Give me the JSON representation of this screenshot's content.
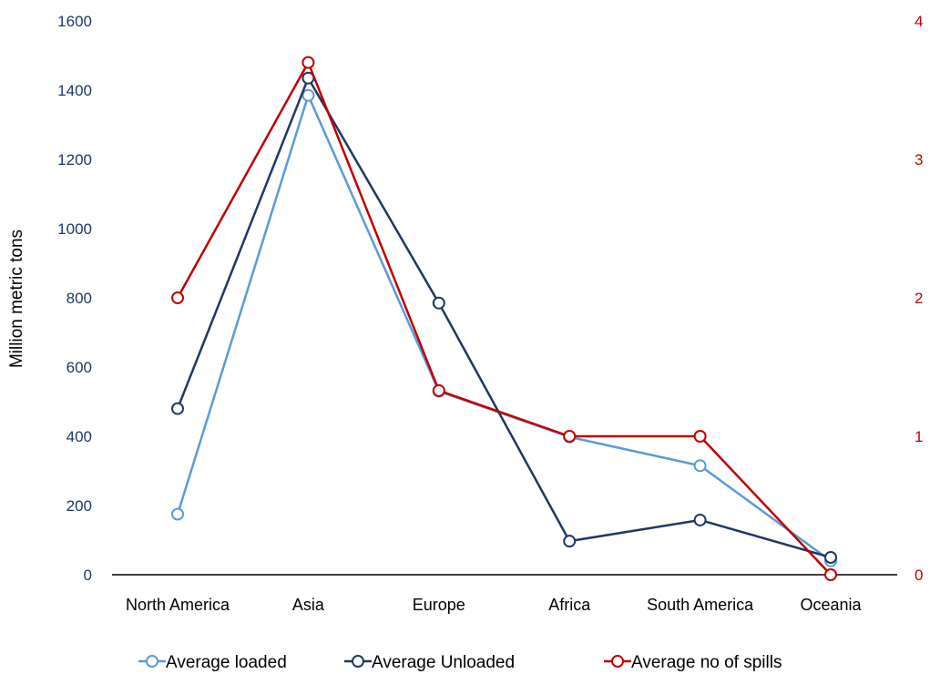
{
  "chart_data": {
    "type": "line",
    "title": "",
    "ylabel": "Million metric tons",
    "y2label": "",
    "categories": [
      "North America",
      "Asia",
      "Europe",
      "Africa",
      "South America",
      "Oceania"
    ],
    "ylim": [
      0,
      1600
    ],
    "yticks": [
      0,
      200,
      400,
      600,
      800,
      1000,
      1200,
      1400,
      1600
    ],
    "y2lim": [
      0,
      4
    ],
    "y2ticks": [
      0,
      1,
      2,
      3,
      4
    ],
    "grid": false,
    "legend_position": "bottom",
    "series": [
      {
        "name": "Average loaded",
        "axis": "left",
        "color": "#5b9bd5",
        "values": [
          175,
          1385,
          530,
          398,
          315,
          40
        ]
      },
      {
        "name": "Average Unloaded",
        "axis": "left",
        "color": "#1f3864",
        "values": [
          480,
          1435,
          785,
          97,
          158,
          50
        ]
      },
      {
        "name": "Average no of spills",
        "axis": "right",
        "color": "#c00000",
        "values": [
          2,
          3.7,
          1.33,
          1,
          1,
          0
        ]
      }
    ]
  }
}
